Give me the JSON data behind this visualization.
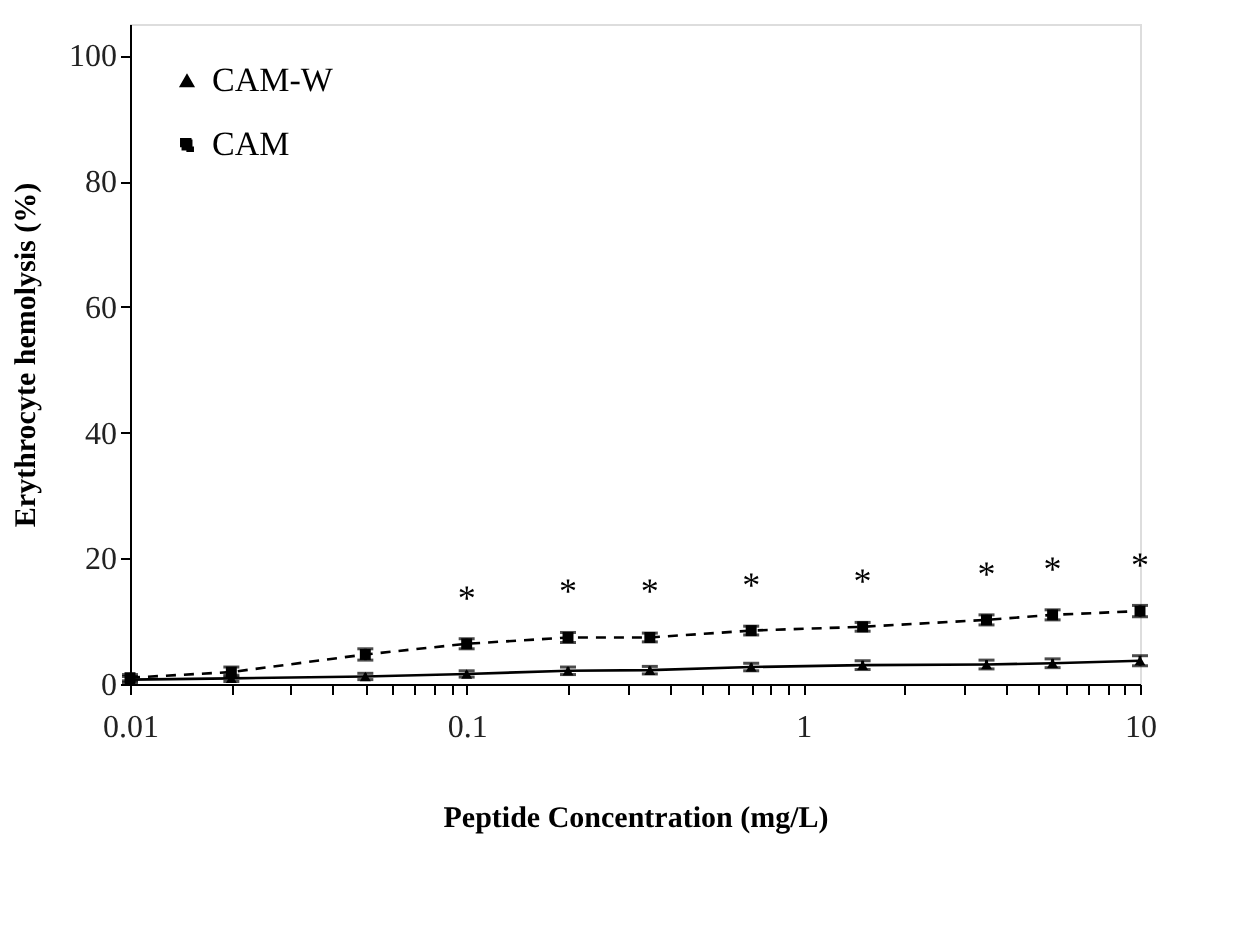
{
  "chart_data": {
    "type": "line",
    "xlabel": "Peptide Concentration (mg/L)",
    "ylabel": "Erythrocyte hemolysis (%)",
    "x": [
      0.01,
      0.02,
      0.05,
      0.1,
      0.2,
      0.35,
      0.7,
      1.5,
      3.5,
      5.5,
      10
    ],
    "series": [
      {
        "name": "CAM-W",
        "color": "#000000",
        "marker": "triangle",
        "line_style": "solid",
        "values": [
          0.7,
          0.9,
          1.2,
          1.6,
          2.1,
          2.2,
          2.7,
          3.0,
          3.1,
          3.3,
          3.7
        ],
        "errors": [
          0.5,
          0.5,
          0.5,
          0.5,
          0.6,
          0.6,
          0.6,
          0.7,
          0.7,
          0.7,
          0.8
        ]
      },
      {
        "name": "CAM",
        "color": "#000000",
        "marker": "square",
        "line_style": "dashed",
        "values": [
          1.0,
          1.9,
          4.7,
          6.4,
          7.4,
          7.4,
          8.5,
          9.1,
          10.2,
          11.0,
          11.6
        ],
        "errors": [
          0.5,
          0.8,
          0.9,
          0.8,
          0.8,
          0.7,
          0.7,
          0.7,
          0.8,
          0.8,
          0.9
        ]
      }
    ],
    "xlim": [
      0.01,
      10
    ],
    "log": "x",
    "xticks": [
      0.01,
      {
        "value": 0.02,
        "label": null
      },
      {
        "value": 0.03,
        "label": null
      },
      {
        "value": 0.04,
        "label": null
      },
      {
        "value": 0.05,
        "label": null
      },
      {
        "value": 0.06,
        "label": null
      },
      {
        "value": 0.07,
        "label": null
      },
      {
        "value": 0.08,
        "label": null
      },
      {
        "value": 0.09,
        "label": null
      },
      0.1,
      {
        "value": 0.2,
        "label": null
      },
      {
        "value": 0.3,
        "label": null
      },
      {
        "value": 0.4,
        "label": null
      },
      {
        "value": 0.5,
        "label": null
      },
      {
        "value": 0.6,
        "label": null
      },
      {
        "value": 0.7,
        "label": null
      },
      {
        "value": 0.8,
        "label": null
      },
      {
        "value": 0.9,
        "label": null
      },
      1,
      {
        "value": 2,
        "label": null
      },
      {
        "value": 3,
        "label": null
      },
      {
        "value": 4,
        "label": null
      },
      {
        "value": 5,
        "label": null
      },
      {
        "value": 6,
        "label": null
      },
      {
        "value": 7,
        "label": null
      },
      {
        "value": 8,
        "label": null
      },
      {
        "value": 9,
        "label": null
      },
      10
    ],
    "ylim": [
      0,
      105
    ],
    "yticks": [
      0,
      20,
      40,
      60,
      80,
      100
    ],
    "grid": false,
    "legend": "top left",
    "annotations": [
      {
        "text": "*",
        "x": 0.1,
        "y": 6.4
      },
      {
        "text": "*",
        "x": 0.2,
        "y": 7.4
      },
      {
        "text": "*",
        "x": 0.35,
        "y": 7.4
      },
      {
        "text": "*",
        "x": 0.7,
        "y": 8.5
      },
      {
        "text": "*",
        "x": 1.5,
        "y": 9.1
      },
      {
        "text": "*",
        "x": 3.5,
        "y": 10.2
      },
      {
        "text": "*",
        "x": 5.5,
        "y": 11.0
      },
      {
        "text": "*",
        "x": 10,
        "y": 11.6
      }
    ]
  }
}
